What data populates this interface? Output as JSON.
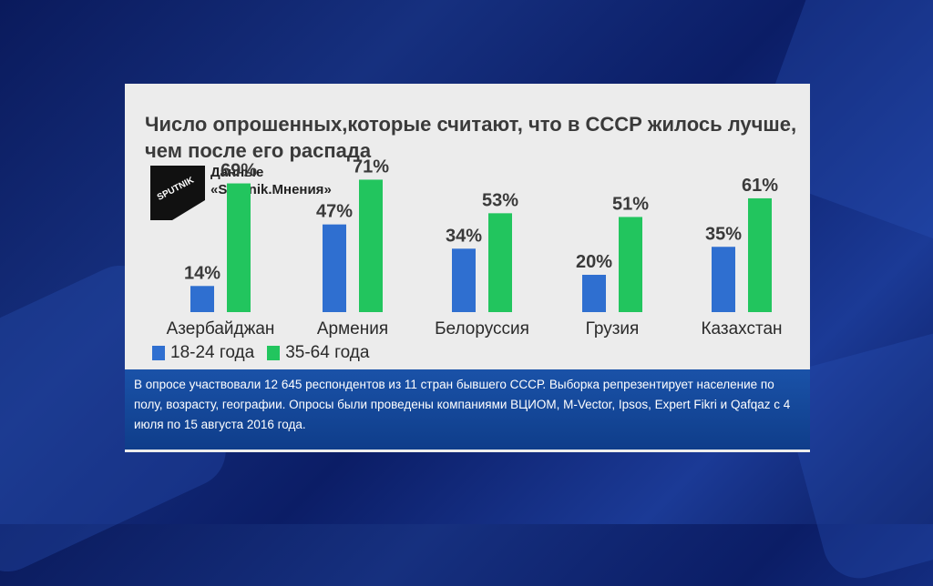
{
  "title": "Число опрошенных,которые считают, что в СССР жилось лучше, чем после его распада",
  "logo_text": "SPUTNIK",
  "source_line1": "Данные",
  "source_line2": "«Sputnik.Мнения»",
  "colors": {
    "series1": "#2f6fd0",
    "series2": "#22c55e",
    "note_bg": "#1a52a8"
  },
  "chart_data": {
    "type": "bar",
    "categories": [
      "Азербайджан",
      "Армения",
      "Белоруссия",
      "Грузия",
      "Казахстан"
    ],
    "series": [
      {
        "name": "18-24 года",
        "values": [
          14,
          47,
          34,
          20,
          35
        ],
        "labels": [
          "14%",
          "47%",
          "34%",
          "20%",
          "35%"
        ]
      },
      {
        "name": "35-64 года",
        "values": [
          69,
          71,
          53,
          51,
          61
        ],
        "labels": [
          "69%",
          "71%",
          "53%",
          "51%",
          "61%"
        ]
      }
    ],
    "ylim": [
      0,
      100
    ]
  },
  "legend": {
    "item1": "18-24 года",
    "item2": "35-64 года"
  },
  "note": "В опросе участвовали 12 645 респондентов из 11 стран бывшего СССР. Выборка репрезентирует население по полу, возрасту, географии. Опросы были проведены компаниями ВЦИОМ, M-Vector, Ipsos, Expert Fikri и Qafqaz с 4 июля по 15 августа 2016 года."
}
